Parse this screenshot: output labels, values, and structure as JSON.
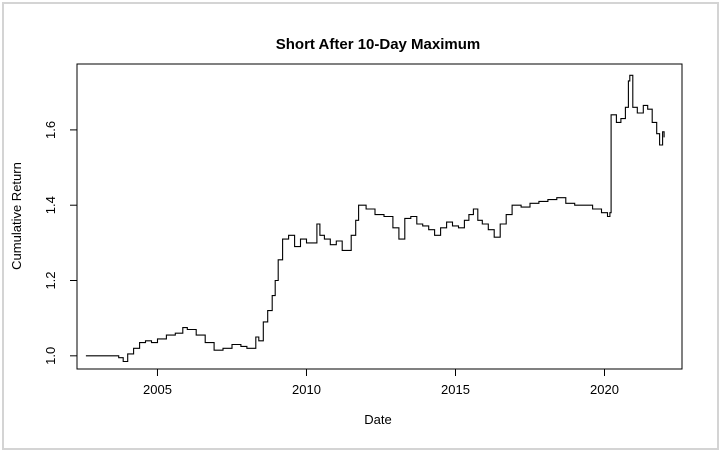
{
  "chart_data": {
    "type": "line",
    "title": "Short After 10-Day Maximum",
    "xlabel": "Date",
    "ylabel": "Cumulative Return",
    "xlim": [
      2002.3,
      2022.6
    ],
    "ylim": [
      0.965,
      1.775
    ],
    "x_ticks": [
      2005,
      2010,
      2015,
      2020
    ],
    "y_ticks": [
      1.0,
      1.2,
      1.4,
      1.6
    ],
    "x_tick_labels": [
      "2005",
      "2010",
      "2015",
      "2020"
    ],
    "y_tick_labels": [
      "1.0",
      "1.2",
      "1.4",
      "1.6"
    ],
    "grid": false,
    "series": [
      {
        "color": "#000000",
        "x": [
          2002.6,
          2003.0,
          2003.5,
          2003.7,
          2003.85,
          2004.0,
          2004.2,
          2004.4,
          2004.6,
          2004.8,
          2005.0,
          2005.3,
          2005.6,
          2005.85,
          2006.0,
          2006.3,
          2006.6,
          2006.9,
          2007.2,
          2007.5,
          2007.8,
          2008.0,
          2008.3,
          2008.4,
          2008.55,
          2008.7,
          2008.85,
          2008.95,
          2009.05,
          2009.2,
          2009.4,
          2009.6,
          2009.8,
          2010.0,
          2010.2,
          2010.35,
          2010.45,
          2010.6,
          2010.8,
          2011.0,
          2011.2,
          2011.35,
          2011.5,
          2011.65,
          2011.75,
          2012.0,
          2012.3,
          2012.6,
          2012.9,
          2013.1,
          2013.3,
          2013.5,
          2013.7,
          2013.9,
          2014.1,
          2014.3,
          2014.5,
          2014.7,
          2014.9,
          2015.1,
          2015.3,
          2015.45,
          2015.6,
          2015.75,
          2015.9,
          2016.1,
          2016.3,
          2016.5,
          2016.7,
          2016.9,
          2017.2,
          2017.5,
          2017.8,
          2018.1,
          2018.4,
          2018.7,
          2019.0,
          2019.3,
          2019.6,
          2019.9,
          2020.1,
          2020.18,
          2020.22,
          2020.4,
          2020.55,
          2020.7,
          2020.8,
          2020.85,
          2020.95,
          2021.1,
          2021.3,
          2021.45,
          2021.6,
          2021.75,
          2021.85,
          2021.95,
          2022.0
        ],
        "y": [
          1.0,
          1.0,
          1.0,
          0.995,
          0.985,
          1.005,
          1.02,
          1.035,
          1.04,
          1.035,
          1.045,
          1.055,
          1.06,
          1.075,
          1.07,
          1.055,
          1.035,
          1.015,
          1.02,
          1.03,
          1.025,
          1.02,
          1.05,
          1.04,
          1.09,
          1.12,
          1.16,
          1.2,
          1.255,
          1.31,
          1.32,
          1.29,
          1.31,
          1.3,
          1.3,
          1.35,
          1.32,
          1.31,
          1.295,
          1.305,
          1.28,
          1.28,
          1.32,
          1.36,
          1.4,
          1.39,
          1.375,
          1.37,
          1.34,
          1.31,
          1.365,
          1.37,
          1.35,
          1.345,
          1.335,
          1.32,
          1.34,
          1.355,
          1.345,
          1.34,
          1.36,
          1.375,
          1.39,
          1.36,
          1.35,
          1.335,
          1.315,
          1.35,
          1.375,
          1.4,
          1.395,
          1.405,
          1.41,
          1.415,
          1.42,
          1.405,
          1.4,
          1.4,
          1.39,
          1.38,
          1.37,
          1.38,
          1.64,
          1.62,
          1.63,
          1.66,
          1.73,
          1.745,
          1.66,
          1.645,
          1.665,
          1.655,
          1.62,
          1.59,
          1.56,
          1.595,
          1.58
        ]
      }
    ]
  }
}
